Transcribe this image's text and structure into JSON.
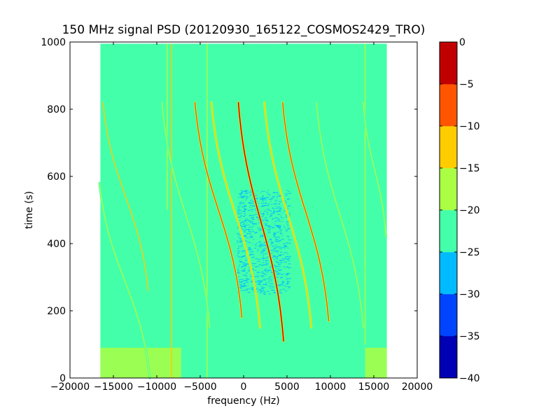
{
  "chart_data": {
    "type": "heatmap",
    "title": "150 MHz signal PSD (20120930_165122_COSMOS2429_TRO)",
    "xlabel": "frequency (Hz)",
    "ylabel": "time (s)",
    "xlim": [
      -20000,
      20000
    ],
    "ylim": [
      0,
      1000
    ],
    "xticks": [
      -20000,
      -15000,
      -10000,
      -5000,
      0,
      5000,
      10000,
      15000,
      20000
    ],
    "xtick_labels": [
      "−20000",
      "−15000",
      "−10000",
      "−5000",
      "0",
      "5000",
      "10000",
      "15000",
      "20000"
    ],
    "yticks": [
      0,
      200,
      400,
      600,
      800,
      1000
    ],
    "ytick_labels": [
      "0",
      "200",
      "400",
      "600",
      "800",
      "1000"
    ],
    "data_extent": {
      "freq": [
        -16500,
        16500
      ],
      "time": [
        0,
        995
      ]
    },
    "colorbar": {
      "levels": [
        -40,
        -35,
        -30,
        -25,
        -20,
        -15,
        -10,
        -5,
        0
      ],
      "tick_labels": [
        "−40",
        "−35",
        "−30",
        "−25",
        "−20",
        "−15",
        "−10",
        "−5",
        "0"
      ],
      "colors": [
        "#0000b4",
        "#0044ff",
        "#00bbff",
        "#44ffaa",
        "#aaff44",
        "#ffcc00",
        "#ff5500",
        "#c00000"
      ]
    },
    "background_level_db": -22,
    "traces": [
      {
        "x0": -600,
        "x1": 4600,
        "t0": 820,
        "t1": 110,
        "peak_db": -3
      },
      {
        "x0": -5600,
        "x1": -200,
        "t0": 820,
        "t1": 180,
        "peak_db": -8
      },
      {
        "x0": 4500,
        "x1": 9800,
        "t0": 820,
        "t1": 170,
        "peak_db": -8
      },
      {
        "x0": -3700,
        "x1": 1900,
        "t0": 820,
        "t1": 150,
        "peak_db": -12
      },
      {
        "x0": 2400,
        "x1": 7800,
        "t0": 820,
        "t1": 150,
        "peak_db": -12
      },
      {
        "x0": -16200,
        "x1": -11000,
        "t0": 820,
        "t1": 260,
        "peak_db": -14
      },
      {
        "x0": -9400,
        "x1": -3900,
        "t0": 820,
        "t1": 150,
        "peak_db": -16
      },
      {
        "x0": 8400,
        "x1": 13800,
        "t0": 820,
        "t1": 150,
        "peak_db": -17
      },
      {
        "x0": 13800,
        "x1": 16400,
        "t0": 820,
        "t1": 420,
        "peak_db": -17
      },
      {
        "x0": -16600,
        "x1": -10800,
        "t0": 580,
        "t1": 0,
        "peak_db": -17
      }
    ],
    "vertical_lines": [
      {
        "freq": -8300,
        "t0": 0,
        "t1": 995,
        "level_db": -15
      },
      {
        "freq": -4200,
        "t0": 0,
        "t1": 995,
        "level_db": -18
      },
      {
        "freq": -8800,
        "t0": 500,
        "t1": 995,
        "level_db": -18
      },
      {
        "freq": 14000,
        "t0": 100,
        "t1": 995,
        "level_db": -18
      }
    ],
    "low_regions": [
      {
        "freq": [
          -800,
          5200
        ],
        "time": [
          250,
          560
        ],
        "level_db": -28
      },
      {
        "freq": [
          -1500,
          5500
        ],
        "time": [
          560,
          995
        ],
        "level_db": -25
      }
    ],
    "high_regions": [
      {
        "freq": [
          -16500,
          -7200
        ],
        "time": [
          0,
          90
        ],
        "level_db": -18
      },
      {
        "freq": [
          14000,
          16500
        ],
        "time": [
          0,
          90
        ],
        "level_db": -19
      }
    ]
  }
}
